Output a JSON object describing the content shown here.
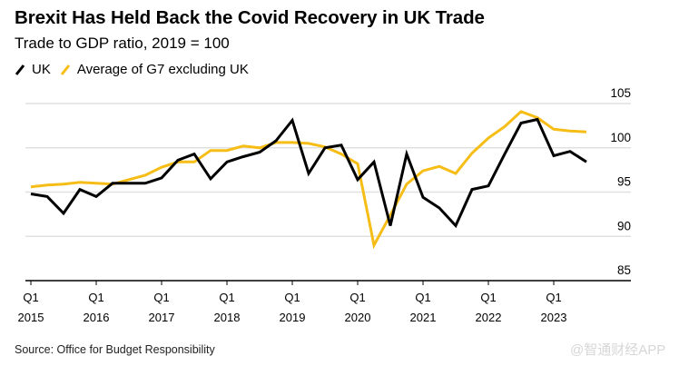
{
  "header": {
    "title": "Brexit Has Held Back the Covid Recovery in UK Trade",
    "subtitle": "Trade to GDP ratio, 2019 = 100"
  },
  "legend": [
    {
      "label": "UK",
      "color": "#000000"
    },
    {
      "label": "Average of G7 excluding UK",
      "color": "#F6BD16"
    }
  ],
  "footer": {
    "source": "Source: Office for Budget Responsibility",
    "watermark": "@智通财经APP"
  },
  "chart_data": {
    "type": "line",
    "title": "Brexit Has Held Back the Covid Recovery in UK Trade",
    "subtitle": "Trade to GDP ratio, 2019 = 100",
    "xlabel": "",
    "ylabel": "",
    "ylim": [
      85,
      105
    ],
    "y_ticks": [
      85,
      90,
      95,
      100,
      105
    ],
    "y_axis_position": "right",
    "grid": true,
    "legend_position": "top-left",
    "x_tick_labels": [
      {
        "index": 0,
        "line1": "Q1",
        "line2": "2015"
      },
      {
        "index": 4,
        "line1": "Q1",
        "line2": "2016"
      },
      {
        "index": 8,
        "line1": "Q1",
        "line2": "2017"
      },
      {
        "index": 12,
        "line1": "Q1",
        "line2": "2018"
      },
      {
        "index": 16,
        "line1": "Q1",
        "line2": "2019"
      },
      {
        "index": 20,
        "line1": "Q1",
        "line2": "2020"
      },
      {
        "index": 24,
        "line1": "Q1",
        "line2": "2021"
      },
      {
        "index": 28,
        "line1": "Q1",
        "line2": "2022"
      },
      {
        "index": 32,
        "line1": "Q1",
        "line2": "2023"
      }
    ],
    "x": [
      "2015Q1",
      "2015Q2",
      "2015Q3",
      "2015Q4",
      "2016Q1",
      "2016Q2",
      "2016Q3",
      "2016Q4",
      "2017Q1",
      "2017Q2",
      "2017Q3",
      "2017Q4",
      "2018Q1",
      "2018Q2",
      "2018Q3",
      "2018Q4",
      "2019Q1",
      "2019Q2",
      "2019Q3",
      "2019Q4",
      "2020Q1",
      "2020Q2",
      "2020Q3",
      "2020Q4",
      "2021Q1",
      "2021Q2",
      "2021Q3",
      "2021Q4",
      "2022Q1",
      "2022Q2",
      "2022Q3",
      "2022Q4",
      "2023Q1",
      "2023Q2",
      "2023Q3"
    ],
    "series": [
      {
        "name": "UK",
        "color": "#000000",
        "values": [
          94.8,
          94.5,
          92.6,
          95.3,
          94.5,
          96.0,
          96.0,
          96.0,
          96.6,
          98.6,
          99.3,
          96.5,
          98.4,
          99.0,
          99.5,
          100.8,
          103.1,
          97.1,
          100.0,
          100.3,
          96.4,
          98.4,
          91.2,
          99.3,
          94.4,
          93.2,
          91.2,
          95.3,
          95.7,
          99.3,
          102.8,
          103.2,
          99.1,
          99.6,
          98.4
        ]
      },
      {
        "name": "Average of G7 excluding UK",
        "color": "#F6BD16",
        "values": [
          95.6,
          95.8,
          95.9,
          96.1,
          96.0,
          95.9,
          96.4,
          96.9,
          97.8,
          98.4,
          98.4,
          99.7,
          99.7,
          100.2,
          100.0,
          100.6,
          100.6,
          100.5,
          100.1,
          99.3,
          98.2,
          89.0,
          92.4,
          95.9,
          97.4,
          97.9,
          97.1,
          99.4,
          101.1,
          102.4,
          104.1,
          103.4,
          102.1,
          101.9,
          101.8
        ]
      }
    ]
  }
}
